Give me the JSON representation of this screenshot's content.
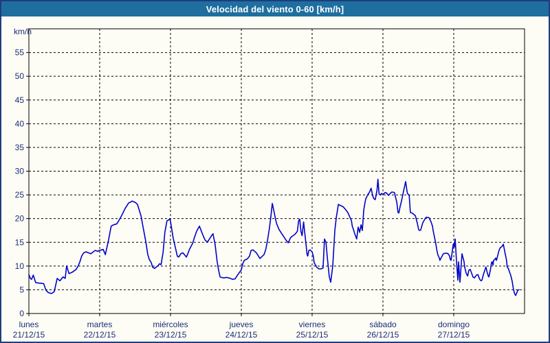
{
  "window": {
    "title": "Velocidad del viento 0-60 [km/h]"
  },
  "colors": {
    "titlebar_bg": "#1e6f9f",
    "titlebar_text": "#ffffff",
    "frame_border": "#1e3c7e",
    "background": "#fdfdf5",
    "axis": "#000000",
    "grid": "#000000",
    "label_text": "#1a2c7a",
    "line": "#0000cc"
  },
  "chart_data": {
    "type": "line",
    "title": "Velocidad del viento 0-60 [km/h]",
    "ylabel": "km/h",
    "ylim": [
      0,
      60
    ],
    "ytick_step": 5,
    "ytick_labels": [
      "0",
      "5",
      "10",
      "15",
      "20",
      "25",
      "30",
      "35",
      "40",
      "45",
      "50",
      "55"
    ],
    "grid": "dashed",
    "legend_position": "none",
    "x_unit": "hours_from_monday_00",
    "x_range_hours": [
      0,
      168
    ],
    "x_categories": [
      {
        "name": "lunes",
        "date": "21/12/15"
      },
      {
        "name": "martes",
        "date": "22/12/15"
      },
      {
        "name": "miércoles",
        "date": "23/12/15"
      },
      {
        "name": "jueves",
        "date": "24/12/15"
      },
      {
        "name": "viernes",
        "date": "25/12/15"
      },
      {
        "name": "sábado",
        "date": "26/12/15"
      },
      {
        "name": "domingo",
        "date": "27/12/15"
      }
    ],
    "series": [
      {
        "name": "velocidad_viento_kmh",
        "color": "#0000cc",
        "points": [
          [
            0,
            8.2
          ],
          [
            0.5,
            7.4
          ],
          [
            0.9,
            7.2
          ],
          [
            1.5,
            8.1
          ],
          [
            2.3,
            6.5
          ],
          [
            3.5,
            6.4
          ],
          [
            5.0,
            6.3
          ],
          [
            5.8,
            4.9
          ],
          [
            6.6,
            4.4
          ],
          [
            7.7,
            4.2
          ],
          [
            8.6,
            4.6
          ],
          [
            9.6,
            7.4
          ],
          [
            10.5,
            6.9
          ],
          [
            11.6,
            7.7
          ],
          [
            12.3,
            7.4
          ],
          [
            12.8,
            10.0
          ],
          [
            13.6,
            8.4
          ],
          [
            14.7,
            8.7
          ],
          [
            16.0,
            9.3
          ],
          [
            16.7,
            10.0
          ],
          [
            17.3,
            10.9
          ],
          [
            17.9,
            12.1
          ],
          [
            18.6,
            12.8
          ],
          [
            19.4,
            13.0
          ],
          [
            20.2,
            12.8
          ],
          [
            21.0,
            12.6
          ],
          [
            21.8,
            13.0
          ],
          [
            22.5,
            13.3
          ],
          [
            23.3,
            13.1
          ],
          [
            24.0,
            13.3
          ],
          [
            25.2,
            13.5
          ],
          [
            25.9,
            12.4
          ],
          [
            27.0,
            15.5
          ],
          [
            27.9,
            18.4
          ],
          [
            28.7,
            18.7
          ],
          [
            29.8,
            18.9
          ],
          [
            30.5,
            19.6
          ],
          [
            31.4,
            20.6
          ],
          [
            32.6,
            22.1
          ],
          [
            33.8,
            23.3
          ],
          [
            34.5,
            23.5
          ],
          [
            35.0,
            23.7
          ],
          [
            36.1,
            23.4
          ],
          [
            36.8,
            23.0
          ],
          [
            38.0,
            20.6
          ],
          [
            38.7,
            18.2
          ],
          [
            39.6,
            15.3
          ],
          [
            40.3,
            12.4
          ],
          [
            40.8,
            11.4
          ],
          [
            41.5,
            10.7
          ],
          [
            41.9,
            9.8
          ],
          [
            42.6,
            9.5
          ],
          [
            43.8,
            10.1
          ],
          [
            44.3,
            10.5
          ],
          [
            44.8,
            10.3
          ],
          [
            45.5,
            13.0
          ],
          [
            46.1,
            17.1
          ],
          [
            46.8,
            19.5
          ],
          [
            47.8,
            19.9
          ],
          [
            48.0,
            19.4
          ],
          [
            48.9,
            15.9
          ],
          [
            50.3,
            12.1
          ],
          [
            50.8,
            11.9
          ],
          [
            51.5,
            12.6
          ],
          [
            52.2,
            12.8
          ],
          [
            53.1,
            12.1
          ],
          [
            53.4,
            11.9
          ],
          [
            54.5,
            13.6
          ],
          [
            55.5,
            14.8
          ],
          [
            56.2,
            16.2
          ],
          [
            56.9,
            17.4
          ],
          [
            57.8,
            18.4
          ],
          [
            59.0,
            16.5
          ],
          [
            59.7,
            15.5
          ],
          [
            60.4,
            15.1
          ],
          [
            60.8,
            15.3
          ],
          [
            62.0,
            16.5
          ],
          [
            62.4,
            16.8
          ],
          [
            63.1,
            14.6
          ],
          [
            63.8,
            11.0
          ],
          [
            64.3,
            9.1
          ],
          [
            64.8,
            7.7
          ],
          [
            65.9,
            7.5
          ],
          [
            67.1,
            7.6
          ],
          [
            68.3,
            7.4
          ],
          [
            69.0,
            7.2
          ],
          [
            69.9,
            7.3
          ],
          [
            70.6,
            8.0
          ],
          [
            71.3,
            8.6
          ],
          [
            72.0,
            9.2
          ],
          [
            72.5,
            10.5
          ],
          [
            73.0,
            11.2
          ],
          [
            74.0,
            11.5
          ],
          [
            74.8,
            12.1
          ],
          [
            75.3,
            13.3
          ],
          [
            76.0,
            13.4
          ],
          [
            76.7,
            13.0
          ],
          [
            77.1,
            12.8
          ],
          [
            77.8,
            12.1
          ],
          [
            78.3,
            11.6
          ],
          [
            78.8,
            11.9
          ],
          [
            79.7,
            12.4
          ],
          [
            80.3,
            13.5
          ],
          [
            80.9,
            15.5
          ],
          [
            81.5,
            17.9
          ],
          [
            82.0,
            20.3
          ],
          [
            82.5,
            23.2
          ],
          [
            83.3,
            20.8
          ],
          [
            83.7,
            19.6
          ],
          [
            84.0,
            18.9
          ],
          [
            84.8,
            17.7
          ],
          [
            85.6,
            16.9
          ],
          [
            86.4,
            16.2
          ],
          [
            87.1,
            15.5
          ],
          [
            87.9,
            14.9
          ],
          [
            88.7,
            16.0
          ],
          [
            89.5,
            16.4
          ],
          [
            90.2,
            16.7
          ],
          [
            91.0,
            17.3
          ],
          [
            91.4,
            19.5
          ],
          [
            91.8,
            19.9
          ],
          [
            92.2,
            17.3
          ],
          [
            92.6,
            16.4
          ],
          [
            93.1,
            19.3
          ],
          [
            94.3,
            12.4
          ],
          [
            94.5,
            12.1
          ],
          [
            94.9,
            13.3
          ],
          [
            95.3,
            13.4
          ],
          [
            96.0,
            13.0
          ],
          [
            96.4,
            12.1
          ],
          [
            96.7,
            10.7
          ],
          [
            97.6,
            9.7
          ],
          [
            98.3,
            9.4
          ],
          [
            99.0,
            9.4
          ],
          [
            99.7,
            9.6
          ],
          [
            100.2,
            15.7
          ],
          [
            100.7,
            15.0
          ],
          [
            101.1,
            12.1
          ],
          [
            101.8,
            7.8
          ],
          [
            102.3,
            6.6
          ],
          [
            103.0,
            10.0
          ],
          [
            103.7,
            17.4
          ],
          [
            104.2,
            20.3
          ],
          [
            104.6,
            21.8
          ],
          [
            104.9,
            23.0
          ],
          [
            105.8,
            22.7
          ],
          [
            106.5,
            22.5
          ],
          [
            107.2,
            22.0
          ],
          [
            108.1,
            21.3
          ],
          [
            108.8,
            20.3
          ],
          [
            109.3,
            19.6
          ],
          [
            109.6,
            18.4
          ],
          [
            110.0,
            17.7
          ],
          [
            110.4,
            16.9
          ],
          [
            111.1,
            15.7
          ],
          [
            111.6,
            18.2
          ],
          [
            112.1,
            17.1
          ],
          [
            112.6,
            18.7
          ],
          [
            113.0,
            17.5
          ],
          [
            113.5,
            21.8
          ],
          [
            113.9,
            23.3
          ],
          [
            114.2,
            24.2
          ],
          [
            114.6,
            24.7
          ],
          [
            115.0,
            25.2
          ],
          [
            115.3,
            25.4
          ],
          [
            115.8,
            26.1
          ],
          [
            116.0,
            26.4
          ],
          [
            116.5,
            24.9
          ],
          [
            116.9,
            24.2
          ],
          [
            117.4,
            24.0
          ],
          [
            117.6,
            24.7
          ],
          [
            118.0,
            26.0
          ],
          [
            118.3,
            28.3
          ],
          [
            118.7,
            25.2
          ],
          [
            119.1,
            25.0
          ],
          [
            119.6,
            25.3
          ],
          [
            120.0,
            25.1
          ],
          [
            120.8,
            25.5
          ],
          [
            121.2,
            25.4
          ],
          [
            121.9,
            24.9
          ],
          [
            122.3,
            25.2
          ],
          [
            123.0,
            25.6
          ],
          [
            123.9,
            25.5
          ],
          [
            124.7,
            23.4
          ],
          [
            125.1,
            21.3
          ],
          [
            125.4,
            21.2
          ],
          [
            125.8,
            22.5
          ],
          [
            126.3,
            23.7
          ],
          [
            127.0,
            25.8
          ],
          [
            127.7,
            27.8
          ],
          [
            128.2,
            25.6
          ],
          [
            128.4,
            25.2
          ],
          [
            128.9,
            24.9
          ],
          [
            129.3,
            21.3
          ],
          [
            129.8,
            21.2
          ],
          [
            130.1,
            21.1
          ],
          [
            131.0,
            20.6
          ],
          [
            131.7,
            18.9
          ],
          [
            132.1,
            17.7
          ],
          [
            132.4,
            17.5
          ],
          [
            132.8,
            17.6
          ],
          [
            133.5,
            19.1
          ],
          [
            134.4,
            20.1
          ],
          [
            134.7,
            20.3
          ],
          [
            135.6,
            20.2
          ],
          [
            136.3,
            19.3
          ],
          [
            136.8,
            18.4
          ],
          [
            137.0,
            17.5
          ],
          [
            137.5,
            16.0
          ],
          [
            137.9,
            14.8
          ],
          [
            138.2,
            13.6
          ],
          [
            138.6,
            12.4
          ],
          [
            139.1,
            11.7
          ],
          [
            139.3,
            11.2
          ],
          [
            140.3,
            12.4
          ],
          [
            140.5,
            12.6
          ],
          [
            141.0,
            12.7
          ],
          [
            141.7,
            12.7
          ],
          [
            142.1,
            12.6
          ],
          [
            142.6,
            12.1
          ],
          [
            142.8,
            11.4
          ],
          [
            143.1,
            11.2
          ],
          [
            143.8,
            14.5
          ],
          [
            144.0,
            14.7
          ],
          [
            144.2,
            14.0
          ],
          [
            144.5,
            15.7
          ],
          [
            144.9,
            11.2
          ],
          [
            145.4,
            7.0
          ],
          [
            145.6,
            10.9
          ],
          [
            146.1,
            6.6
          ],
          [
            146.8,
            12.6
          ],
          [
            147.5,
            10.9
          ],
          [
            147.7,
            9.8
          ],
          [
            148.2,
            8.5
          ],
          [
            148.7,
            7.9
          ],
          [
            149.1,
            9.1
          ],
          [
            149.6,
            9.3
          ],
          [
            149.8,
            8.9
          ],
          [
            150.3,
            8.1
          ],
          [
            150.5,
            7.7
          ],
          [
            151.0,
            7.5
          ],
          [
            151.7,
            8.1
          ],
          [
            152.2,
            8.2
          ],
          [
            152.6,
            7.5
          ],
          [
            152.9,
            7.1
          ],
          [
            153.3,
            6.9
          ],
          [
            153.6,
            7.1
          ],
          [
            154.0,
            8.1
          ],
          [
            154.5,
            9.1
          ],
          [
            154.9,
            9.8
          ],
          [
            155.4,
            8.5
          ],
          [
            155.7,
            7.9
          ],
          [
            155.9,
            7.7
          ],
          [
            156.4,
            9.1
          ],
          [
            156.8,
            10.7
          ],
          [
            157.0,
            10.9
          ],
          [
            157.3,
            10.2
          ],
          [
            157.5,
            11.2
          ],
          [
            158.0,
            11.4
          ],
          [
            158.2,
            11.7
          ],
          [
            158.5,
            11.2
          ],
          [
            159.1,
            12.7
          ],
          [
            159.4,
            13.4
          ],
          [
            159.8,
            13.9
          ],
          [
            160.3,
            14.1
          ],
          [
            160.8,
            14.6
          ],
          [
            161.4,
            12.7
          ],
          [
            161.9,
            11.2
          ],
          [
            162.1,
            9.8
          ],
          [
            162.6,
            9.4
          ],
          [
            162.8,
            8.9
          ],
          [
            163.3,
            8.1
          ],
          [
            163.8,
            6.8
          ],
          [
            164.2,
            5.2
          ],
          [
            164.6,
            4.2
          ],
          [
            165.0,
            3.8
          ],
          [
            165.4,
            4.4
          ],
          [
            165.7,
            4.9
          ],
          [
            166.1,
            5.0
          ]
        ]
      }
    ]
  }
}
